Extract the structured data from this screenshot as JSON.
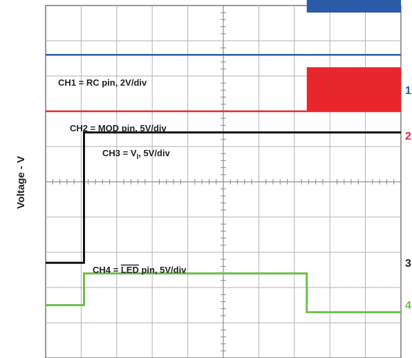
{
  "chart_data": {
    "type": "line",
    "title": "",
    "xlabel": "",
    "ylabel": "Voltage - V",
    "grid": true,
    "x_divisions": 10,
    "y_divisions": 10,
    "xlim": [
      0,
      10
    ],
    "ylim": [
      -5,
      5
    ],
    "labels": {
      "ch1": "CH1 = RC pin, 2V/div",
      "ch2": "CH2 = MOD pin, 5V/div",
      "ch3_prefix": "CH3 = V",
      "ch3_sub": "I",
      "ch3_suffix": ", 5V/div",
      "ch4_prefix": "CH4 = ",
      "ch4_overline": "LED",
      "ch4_suffix": " pin, 5V/div"
    },
    "markers": {
      "m1": "1",
      "m2": "2",
      "m3": "3",
      "m4": "4"
    },
    "colors": {
      "ch1": "#2a5aa8",
      "ch2": "#e8262c",
      "ch3": "#111111",
      "ch4": "#6abf4b",
      "grid": "#b0b0b0"
    },
    "series": [
      {
        "id": "ch1",
        "kind": "switching",
        "switch_x": 7.35,
        "low_y": 3.6,
        "high_lo_y": 4.8,
        "high_hi_y": 6.2,
        "end_x": 10
      },
      {
        "id": "ch2",
        "kind": "switching",
        "switch_x": 7.35,
        "low_y": 2.0,
        "high_lo_y": 2.0,
        "high_hi_y": 3.25,
        "end_x": 10
      },
      {
        "id": "ch3",
        "kind": "step",
        "points": [
          [
            0,
            -2.3
          ],
          [
            1.08,
            -2.3
          ],
          [
            1.08,
            1.4
          ],
          [
            10,
            1.4
          ]
        ]
      },
      {
        "id": "ch4",
        "kind": "step",
        "points": [
          [
            0,
            -3.5
          ],
          [
            1.08,
            -3.5
          ],
          [
            1.08,
            -2.6
          ],
          [
            7.35,
            -2.6
          ],
          [
            7.35,
            -3.7
          ],
          [
            10,
            -3.7
          ]
        ]
      }
    ]
  }
}
